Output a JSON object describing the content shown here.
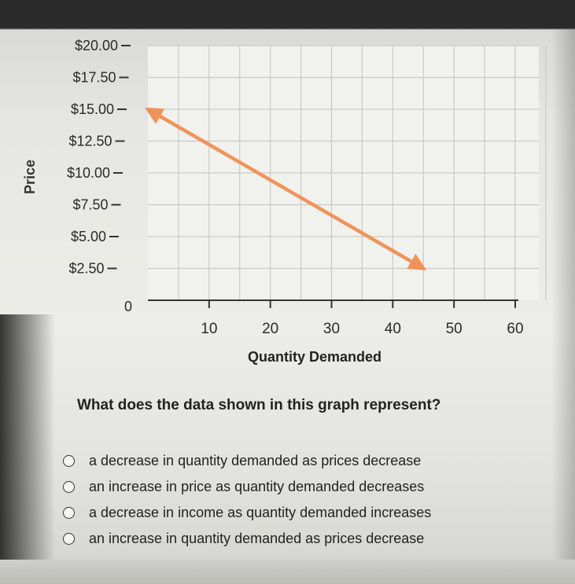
{
  "question": "What does the data shown in this graph represent?",
  "options": [
    {
      "label": "a decrease in quantity demanded as prices decrease"
    },
    {
      "label": "an increase in price as quantity demanded decreases"
    },
    {
      "label": "a decrease in income as quantity demanded increases"
    },
    {
      "label": "an increase in quantity demanded as prices decrease"
    }
  ],
  "chart_data": {
    "type": "line",
    "title": "",
    "xlabel": "Quantity Demanded",
    "ylabel": "Price",
    "x_ticks": [
      10,
      20,
      30,
      40,
      50,
      60
    ],
    "x_tick_labels": [
      "10",
      "20",
      "30",
      "40",
      "50",
      "60"
    ],
    "y_ticks": [
      2.5,
      5,
      7.5,
      10,
      12.5,
      15,
      17.5,
      20
    ],
    "y_tick_labels": [
      "$2.50",
      "$5.00",
      "$7.50",
      "$10.00",
      "$12.50",
      "$15.00",
      "$17.50",
      "$20.00"
    ],
    "zero_label": "0",
    "xlim": [
      0,
      60
    ],
    "ylim": [
      0,
      20
    ],
    "grid": true,
    "line_color": "#f0935a",
    "series": [
      {
        "x": [
          0,
          45
        ],
        "y": [
          15,
          2.5
        ],
        "arrows": "both"
      }
    ]
  }
}
